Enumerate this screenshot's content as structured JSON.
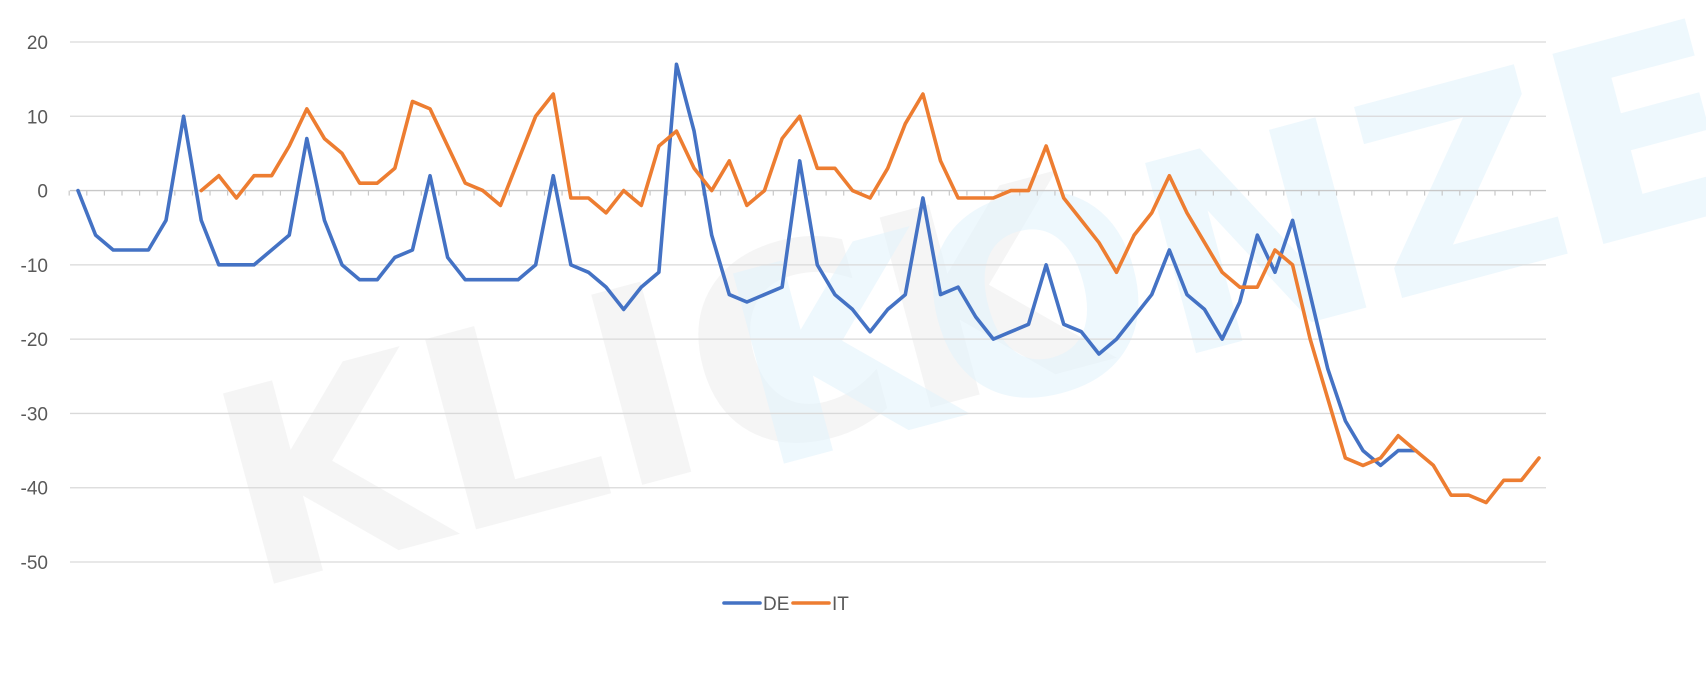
{
  "watermark": {
    "text1": "KLICK",
    "text2": "KONZERT"
  },
  "chart_data": {
    "type": "line",
    "title": "",
    "xlabel": "",
    "ylabel": "",
    "ylim": [
      -50,
      20
    ],
    "yticks": [
      20,
      10,
      0,
      -10,
      -20,
      -30,
      -40,
      -50
    ],
    "x_count": 84,
    "grid": true,
    "legend_position": "bottom",
    "series": [
      {
        "name": "DE",
        "color": "#4472C4",
        "start_index": 0,
        "values": [
          0,
          -6,
          -8,
          -8,
          -8,
          -4,
          10,
          -4,
          -10,
          -10,
          -10,
          -8,
          -6,
          7,
          -4,
          -10,
          -12,
          -12,
          -9,
          -8,
          2,
          -9,
          -12,
          -12,
          -12,
          -12,
          -10,
          2,
          -10,
          -11,
          -13,
          -16,
          -13,
          -11,
          17,
          8,
          -6,
          -14,
          -15,
          -14,
          -13,
          4,
          -10,
          -14,
          -16,
          -19,
          -16,
          -14,
          -1,
          -14,
          -13,
          -17,
          -20,
          -19,
          -18,
          -10,
          -18,
          -19,
          -22,
          -20,
          -17,
          -14,
          -8,
          -14,
          -16,
          -20,
          -15,
          -6,
          -11,
          -4,
          -14,
          -24,
          -31,
          -35,
          -37,
          -35,
          -35
        ]
      },
      {
        "name": "IT",
        "color": "#ED7D31",
        "start_index": 7,
        "values": [
          0,
          2,
          -1,
          2,
          2,
          6,
          11,
          7,
          5,
          1,
          1,
          3,
          12,
          11,
          6,
          1,
          0,
          -2,
          4,
          10,
          13,
          -1,
          -1,
          -3,
          0,
          -2,
          6,
          8,
          3,
          0,
          4,
          -2,
          0,
          7,
          10,
          3,
          3,
          0,
          -1,
          3,
          9,
          13,
          4,
          -1,
          -1,
          -1,
          0,
          0,
          6,
          -1,
          -4,
          -7,
          -11,
          -6,
          -3,
          2,
          -3,
          -7,
          -11,
          -13,
          -13,
          -8,
          -10,
          -20,
          -28,
          -36,
          -37,
          -36,
          -33,
          -35,
          -37,
          -41,
          -41,
          -42,
          -39,
          -39,
          -36
        ]
      }
    ]
  }
}
